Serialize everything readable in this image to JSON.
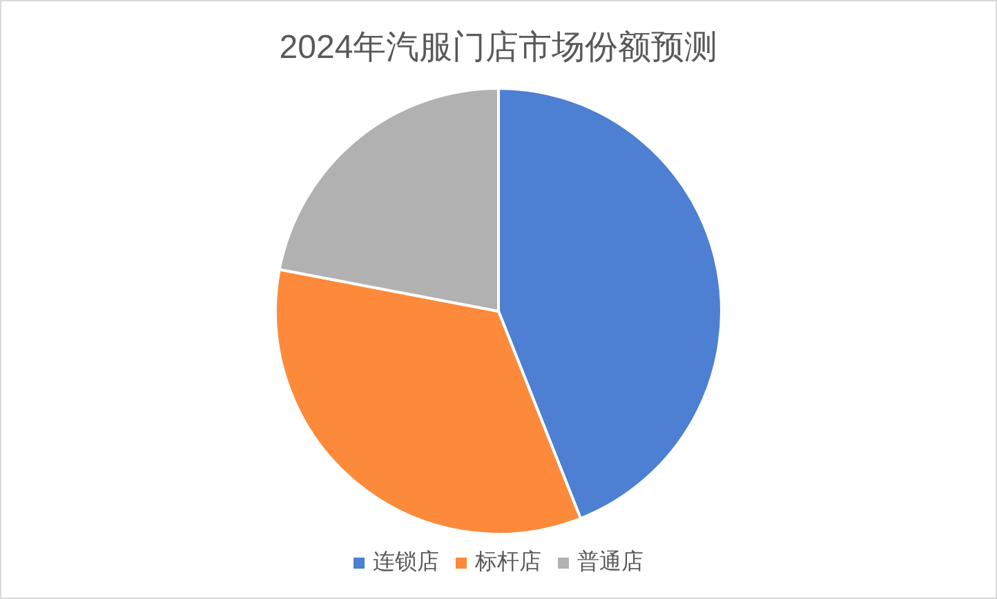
{
  "chart_data": {
    "type": "pie",
    "title": "2024年汽服门店市场份额预测",
    "categories": [
      "连锁店",
      "标杆店",
      "普通店"
    ],
    "values": [
      44,
      34,
      22
    ],
    "colors": [
      "#4d7fd2",
      "#fd8a3b",
      "#b1b1b1"
    ],
    "legend": "bottom"
  }
}
